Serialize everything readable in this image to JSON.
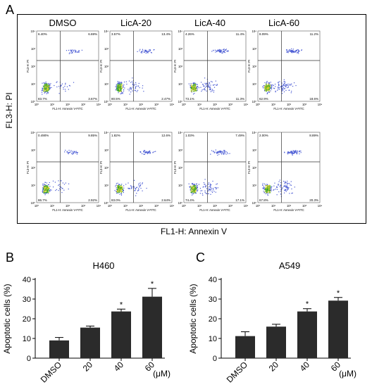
{
  "panels": {
    "a": "A",
    "b": "B",
    "c": "C"
  },
  "flow": {
    "conditions": [
      "DMSO",
      "LicA-20",
      "LicA-40",
      "LicA-60"
    ],
    "y_title": "FL3-H: PI",
    "x_title": "FL1-H: Annexin V",
    "plot_y_label": "FL3-H: PI",
    "plot_x_label": "FL1-H: Annexin V-FITC",
    "tick_labels": [
      "10⁰",
      "10¹",
      "10²",
      "10³",
      "10⁴"
    ],
    "rows": [
      {
        "quadrants": [
          {
            "ul": "6.40%",
            "ur": "6.69%",
            "ll": "83.7%",
            "lr": "3.67%"
          },
          {
            "ul": "3.57%",
            "ur": "13.4%",
            "ll": "80.5%",
            "lr": "2.47%"
          },
          {
            "ul": "4.26%",
            "ur": "11.4%",
            "ll": "73.1%",
            "lr": "11.3%"
          },
          {
            "ul": "8.09%",
            "ur": "11.2%",
            "ll": "62.9%",
            "lr": "18.6%"
          }
        ]
      },
      {
        "quadrants": [
          {
            "ul": "0.490%",
            "ur": "9.85%",
            "ll": "86.7%",
            "lr": "2.92%"
          },
          {
            "ul": "1.82%",
            "ur": "12.6%",
            "ll": "83.0%",
            "lr": "2.64%"
          },
          {
            "ul": "1.03%",
            "ur": "7.49%",
            "ll": "74.4%",
            "lr": "17.1%"
          },
          {
            "ul": "2.00%",
            "ur": "8.89%",
            "ll": "67.8%",
            "lr": "20.3%"
          }
        ]
      }
    ]
  },
  "colors": {
    "bar": "#2b2b2b",
    "density_low": "#4a5bd4",
    "density_high": "#2ca02c"
  },
  "chart_data": [
    {
      "type": "bar",
      "title": "H460",
      "categories": [
        "DMSO",
        "20",
        "40",
        "60"
      ],
      "unit_label": "(μM)",
      "values": [
        9,
        15.5,
        23.7,
        31.2
      ],
      "errors": [
        1.5,
        0.8,
        1.2,
        4.2
      ],
      "significance": [
        "",
        "",
        "*",
        "*"
      ],
      "ylabel": "Apoptotic cells (%)",
      "ylim": [
        0,
        40
      ],
      "yticks": [
        0,
        10,
        20,
        30,
        40
      ]
    },
    {
      "type": "bar",
      "title": "A549",
      "categories": [
        "DMSO",
        "20",
        "40",
        "60"
      ],
      "unit_label": "(μM)",
      "values": [
        11.2,
        16,
        23.7,
        29.2
      ],
      "errors": [
        2.2,
        1.2,
        1.4,
        1.6
      ],
      "significance": [
        "",
        "",
        "*",
        "*"
      ],
      "ylabel": "Apoptotic cells (%)",
      "ylim": [
        0,
        40
      ],
      "yticks": [
        0,
        10,
        20,
        30,
        40
      ]
    }
  ]
}
